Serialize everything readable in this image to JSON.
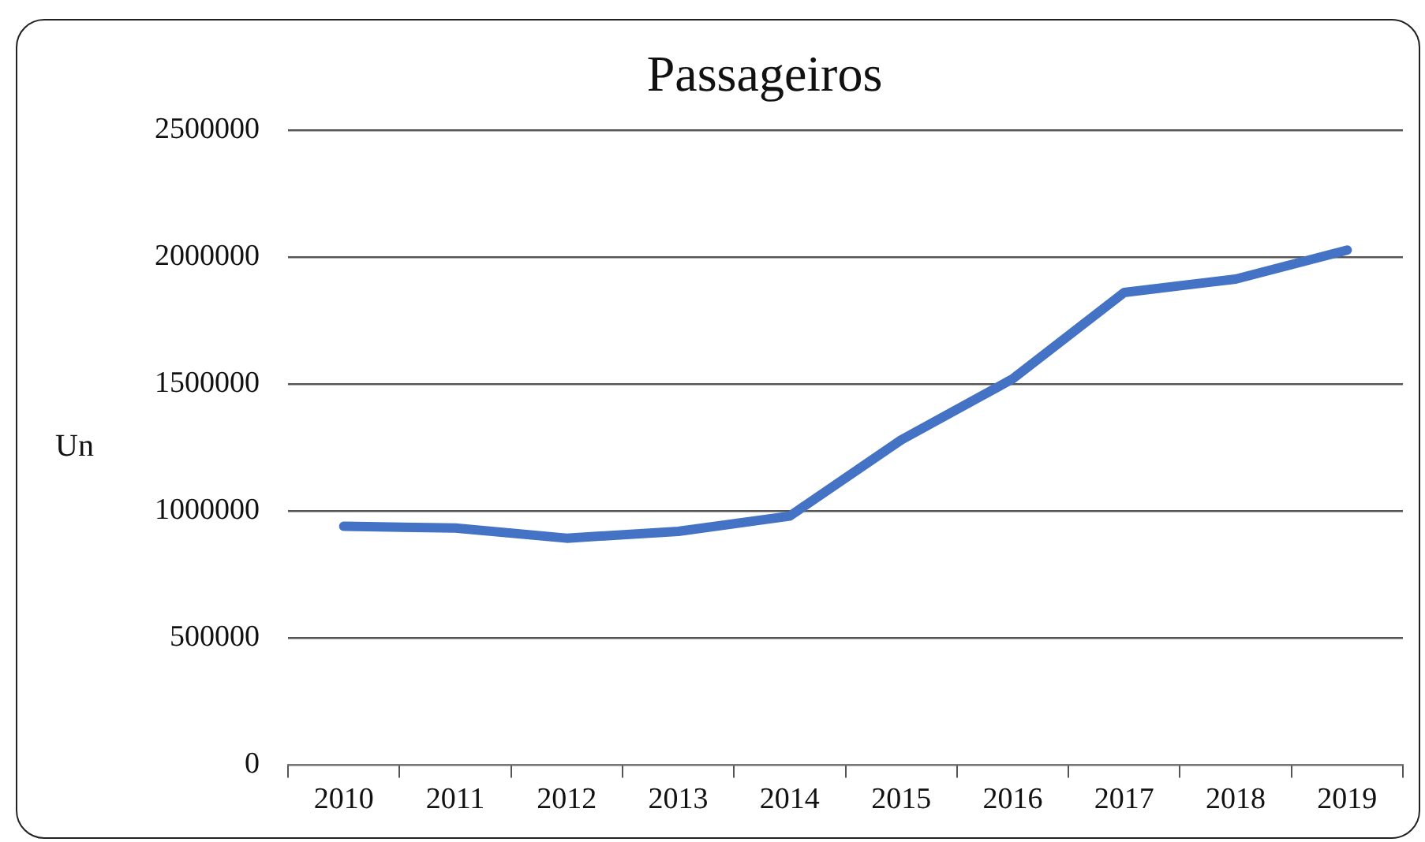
{
  "chart_data": {
    "type": "line",
    "title": "Passageiros",
    "ylabel": "Un",
    "categories": [
      "2010",
      "2011",
      "2012",
      "2013",
      "2014",
      "2015",
      "2016",
      "2017",
      "2018",
      "2019"
    ],
    "series": [
      {
        "color": "#4472c4",
        "values": [
          940000,
          933000,
          893000,
          920000,
          980000,
          1280000,
          1520000,
          1860000,
          1913000,
          2027000
        ]
      }
    ],
    "ylim": [
      0,
      2500000
    ],
    "yticks": [
      0,
      500000,
      1000000,
      1500000,
      2000000,
      2500000
    ],
    "grid": "y",
    "legend": false,
    "marker": "none",
    "line_style": "solid"
  }
}
